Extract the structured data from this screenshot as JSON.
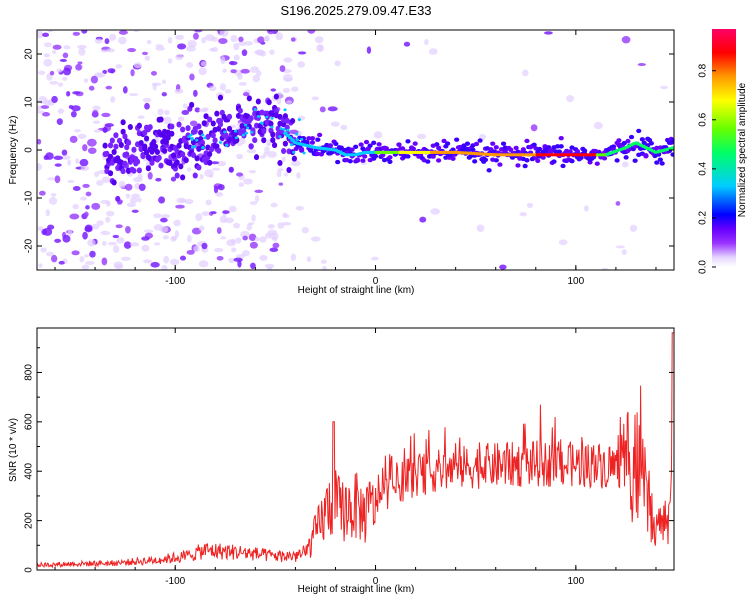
{
  "title": "S196.2025.279.09.47.E33",
  "chart_data": [
    {
      "type": "heatmap",
      "xlabel": "Height of straight line (km)",
      "ylabel": "Frequency (Hz)",
      "xlim": [
        -169,
        149
      ],
      "ylim": [
        -25,
        25
      ],
      "xticks": [
        -100,
        0,
        100
      ],
      "yticks": [
        -20,
        -10,
        0,
        10,
        20
      ],
      "colorbar": {
        "label": "Normalized spectral amplitude",
        "range": [
          0,
          0.97
        ],
        "ticks": [
          0.0,
          0.2,
          0.4,
          0.6,
          0.8
        ],
        "colormap": [
          "#ffffff",
          "#e6d6ff",
          "#9933ff",
          "#6600ff",
          "#0000ff",
          "#00ccff",
          "#00ff66",
          "#66ff00",
          "#ffff00",
          "#ff9900",
          "#ff0000",
          "#ff0066"
        ]
      },
      "ridge": {
        "x": [
          -130,
          -100,
          -80,
          -60,
          -50,
          -40,
          -30,
          -20,
          -15,
          -10,
          -5,
          0,
          10,
          20,
          40,
          60,
          80,
          100,
          115,
          125,
          130,
          135,
          140,
          149
        ],
        "y": [
          -1.5,
          1.0,
          2.5,
          4.5,
          5.5,
          1.5,
          0.5,
          0.0,
          -1.0,
          -1.0,
          -0.5,
          -0.5,
          -0.5,
          -0.5,
          -0.5,
          -1.0,
          -1.0,
          -1.0,
          -1.0,
          0.5,
          1.5,
          0.5,
          -0.5,
          0.5
        ]
      }
    },
    {
      "type": "line",
      "xlabel": "Height of straight line (km)",
      "ylabel": "SNR (10 * v/v)",
      "xlim": [
        -169,
        149
      ],
      "ylim": [
        0,
        980
      ],
      "xticks": [
        -100,
        0,
        100
      ],
      "yticks": [
        0,
        200,
        400,
        600,
        800
      ],
      "color": "#ee2222",
      "series": [
        {
          "x": [
            -169,
            -150,
            -130,
            -110,
            -95,
            -85,
            -75,
            -65,
            -55,
            -45,
            -35,
            -28,
            -22,
            -17,
            -10,
            -5,
            0,
            10,
            20,
            30,
            50,
            80,
            110,
            120,
            125,
            130,
            135,
            140,
            145,
            149
          ],
          "y": [
            20,
            25,
            28,
            40,
            55,
            80,
            75,
            70,
            60,
            55,
            65,
            180,
            280,
            240,
            260,
            220,
            280,
            340,
            380,
            400,
            420,
            430,
            425,
            420,
            430,
            420,
            300,
            150,
            200,
            400
          ]
        }
      ]
    }
  ]
}
